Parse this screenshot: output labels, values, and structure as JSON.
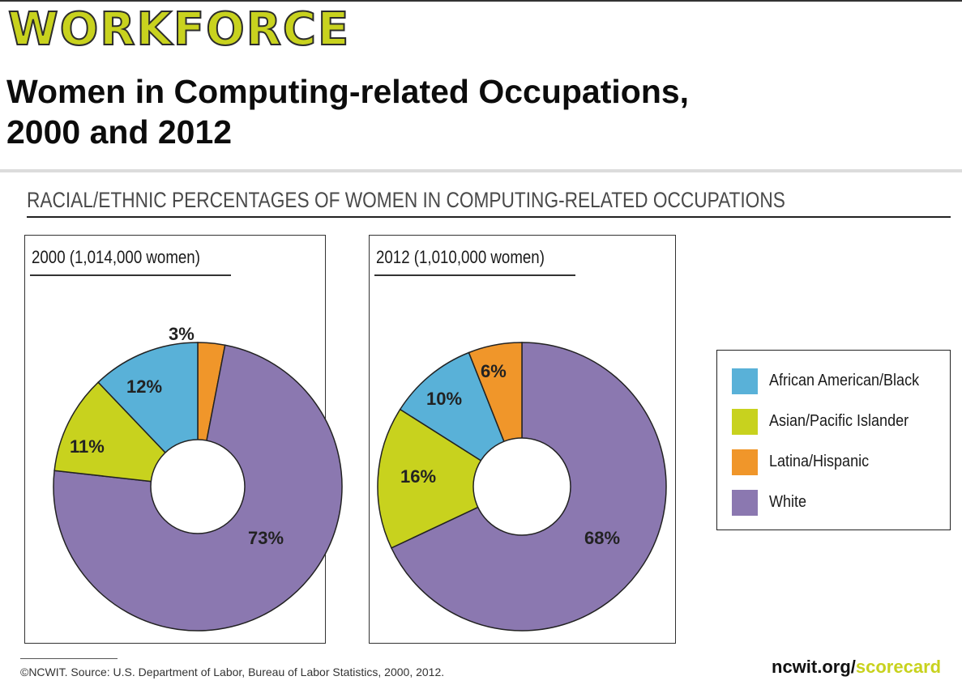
{
  "header": {
    "section": "WORKFORCE"
  },
  "title_lines": [
    "Women in Computing-related Occupations,",
    "2000 and 2012"
  ],
  "chart_heading": "RACIAL/ETHNIC PERCENTAGES OF WOMEN IN COMPUTING-RELATED OCCUPATIONS",
  "colors": {
    "accent": "#c8d21e",
    "african_american_black": "#59b1d8",
    "asian_pacific_islander": "#c8d21e",
    "latina_hispanic": "#f0962a",
    "white": "#8b78b0"
  },
  "legend": [
    {
      "label": "African American/Black",
      "color": "#59b1d8"
    },
    {
      "label": "Asian/Pacific Islander",
      "color": "#c8d21e"
    },
    {
      "label": "Latina/Hispanic",
      "color": "#f0962a"
    },
    {
      "label": "White",
      "color": "#8b78b0"
    }
  ],
  "chart_data": [
    {
      "type": "pie",
      "title": "2000 (1,014,000 women)",
      "categories": [
        "Latina/Hispanic",
        "White",
        "Asian/Pacific Islander",
        "African American/Black"
      ],
      "values": [
        3,
        73,
        11,
        12
      ],
      "labels": [
        "3%",
        "73%",
        "11%",
        "12%"
      ],
      "colors": [
        "#f0962a",
        "#8b78b0",
        "#c8d21e",
        "#59b1d8"
      ],
      "donut": true
    },
    {
      "type": "pie",
      "title": "2012 (1,010,000 women)",
      "categories": [
        "White",
        "Asian/Pacific Islander",
        "African American/Black",
        "Latina/Hispanic"
      ],
      "values": [
        68,
        16,
        10,
        6
      ],
      "labels": [
        "68%",
        "16%",
        "10%",
        "6%"
      ],
      "colors": [
        "#8b78b0",
        "#c8d21e",
        "#59b1d8",
        "#f0962a"
      ],
      "donut": true
    }
  ],
  "footer": {
    "source": "©NCWIT. Source: U.S. Department of Labor, Bureau of Labor Statistics, 2000, 2012.",
    "link_domain": "ncwit.org/",
    "link_path": "scorecard"
  }
}
